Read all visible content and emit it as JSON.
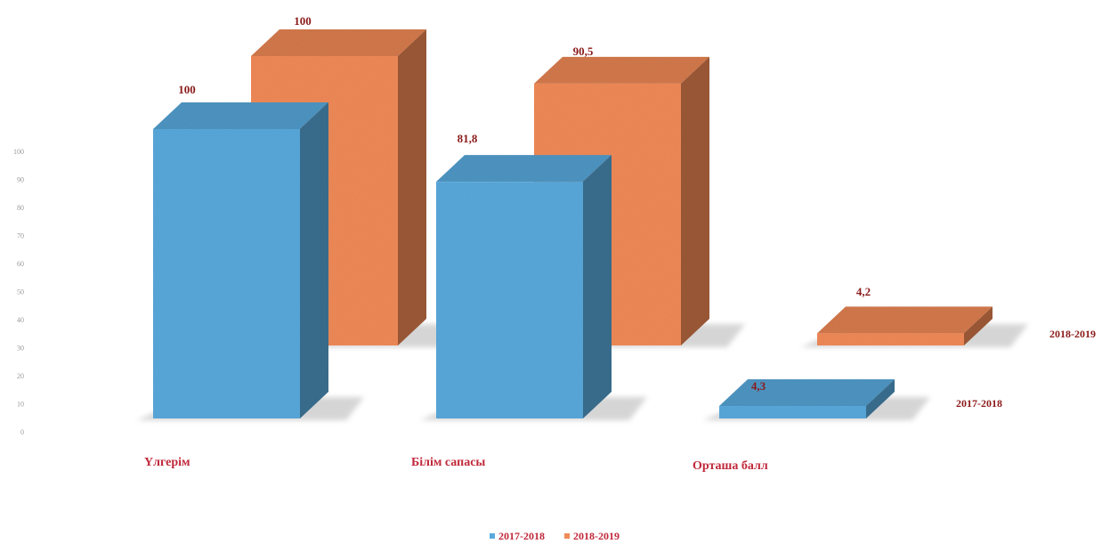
{
  "chart_data": {
    "type": "bar",
    "style": "3d-column",
    "categories": [
      "Үлгерім",
      "Білім сапасы",
      "Орташа балл"
    ],
    "series": [
      {
        "name": "2017-2018",
        "values": [
          100,
          81.8,
          4.3
        ],
        "labels": [
          "100",
          "81,8",
          "4,3"
        ],
        "color": "#5aa9dc"
      },
      {
        "name": "2018-2019",
        "values": [
          100,
          90.5,
          4.2
        ],
        "labels": [
          "100",
          "90,5",
          "4,2"
        ],
        "color": "#f08a58"
      }
    ],
    "depth_axis_labels": [
      "2017-2018",
      "2018-2019"
    ],
    "y_ticks": [
      "0",
      "10",
      "20",
      "30",
      "40",
      "50",
      "60",
      "70",
      "80",
      "90",
      "100"
    ],
    "ylim": [
      0,
      100
    ],
    "legend_position": "bottom",
    "title": "",
    "xlabel": "",
    "ylabel": ""
  }
}
